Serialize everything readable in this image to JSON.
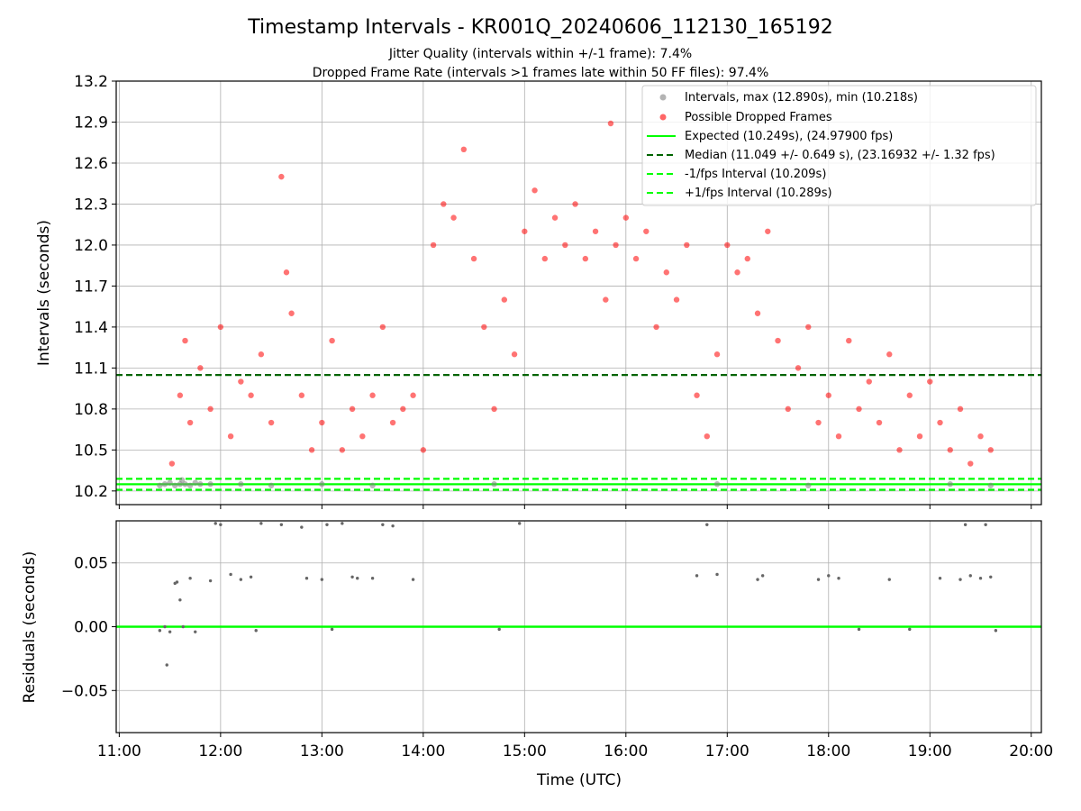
{
  "title": "Timestamp Intervals - KR001Q_20240606_112130_165192",
  "subtitle1": "Jitter Quality (intervals within +/-1 frame): 7.4%",
  "subtitle2": "Dropped Frame Rate (intervals >1 frames late within 50 FF files): 97.4%",
  "colors": {
    "intervals": "#808080",
    "dropped": "#ff0000",
    "expected": "#00ff00",
    "median": "#006400",
    "fps_band": "#00ff00"
  },
  "chart_data": [
    {
      "type": "scatter",
      "title": "",
      "xlabel": "",
      "ylabel": "Intervals (seconds)",
      "xlim": [
        10.97,
        20.1
      ],
      "ylim": [
        10.1,
        13.2
      ],
      "grid": true,
      "legend_placement": "top-right",
      "x_ticks": [
        11,
        12,
        13,
        14,
        15,
        16,
        17,
        18,
        19,
        20
      ],
      "y_ticks": [
        10.2,
        10.5,
        10.8,
        11.1,
        11.4,
        11.7,
        12.0,
        12.3,
        12.6,
        12.9,
        13.2
      ],
      "y_tick_labels": [
        "10.2",
        "10.5",
        "10.8",
        "11.1",
        "11.4",
        "11.7",
        "12.0",
        "12.3",
        "12.6",
        "12.9",
        "13.2"
      ],
      "series": [
        {
          "name": "Intervals, max (12.890s), min (10.218s)",
          "kind": "scatter",
          "x": [
            11.4,
            11.45,
            11.5,
            11.55,
            11.6,
            11.62,
            11.65,
            11.7,
            11.75,
            11.8,
            11.9,
            12.2,
            12.5,
            13.0,
            13.5,
            14.7,
            16.9,
            17.8,
            19.2,
            19.6
          ],
          "y": [
            10.24,
            10.25,
            10.26,
            10.24,
            10.25,
            10.28,
            10.25,
            10.24,
            10.26,
            10.25,
            10.25,
            10.25,
            10.24,
            10.25,
            10.24,
            10.25,
            10.25,
            10.24,
            10.25,
            10.24
          ]
        },
        {
          "name": "Possible Dropped Frames",
          "kind": "scatter",
          "x": [
            11.52,
            11.6,
            11.65,
            11.7,
            11.8,
            11.9,
            12.0,
            12.1,
            12.2,
            12.3,
            12.4,
            12.5,
            12.6,
            12.65,
            12.7,
            12.8,
            12.9,
            13.0,
            13.1,
            13.2,
            13.3,
            13.4,
            13.5,
            13.6,
            13.7,
            13.8,
            13.9,
            14.0,
            14.1,
            14.2,
            14.3,
            14.4,
            14.5,
            14.6,
            14.7,
            14.8,
            14.9,
            15.0,
            15.1,
            15.2,
            15.3,
            15.4,
            15.5,
            15.6,
            15.7,
            15.8,
            15.85,
            15.9,
            16.0,
            16.1,
            16.2,
            16.3,
            16.4,
            16.5,
            16.6,
            16.7,
            16.8,
            16.9,
            17.0,
            17.1,
            17.2,
            17.3,
            17.4,
            17.5,
            17.6,
            17.7,
            17.8,
            17.9,
            18.0,
            18.1,
            18.2,
            18.3,
            18.4,
            18.5,
            18.6,
            18.7,
            18.8,
            18.9,
            19.0,
            19.1,
            19.2,
            19.3,
            19.4,
            19.5,
            19.6
          ],
          "y": [
            10.4,
            10.9,
            11.3,
            10.7,
            11.1,
            10.8,
            11.4,
            10.6,
            11.0,
            10.9,
            11.2,
            10.7,
            12.5,
            11.8,
            11.5,
            10.9,
            10.5,
            10.7,
            11.3,
            10.5,
            10.8,
            10.6,
            10.9,
            11.4,
            10.7,
            10.8,
            10.9,
            10.5,
            12.0,
            12.3,
            12.2,
            12.7,
            11.9,
            11.4,
            10.8,
            11.6,
            11.2,
            12.1,
            12.4,
            11.9,
            12.2,
            12.0,
            12.3,
            11.9,
            12.1,
            11.6,
            12.89,
            12.0,
            12.2,
            11.9,
            12.1,
            11.4,
            11.8,
            11.6,
            12.0,
            10.9,
            10.6,
            11.2,
            12.0,
            11.8,
            11.9,
            11.5,
            12.1,
            11.3,
            10.8,
            11.1,
            11.4,
            10.7,
            10.9,
            10.6,
            11.3,
            10.8,
            11.0,
            10.7,
            11.2,
            10.5,
            10.9,
            10.6,
            11.0,
            10.7,
            10.5,
            10.8,
            10.4,
            10.6,
            10.5
          ]
        },
        {
          "name": "Expected (10.249s), (24.97900 fps)",
          "kind": "hline",
          "y": 10.249
        },
        {
          "name": "Median (11.049 +/- 0.649 s), (23.16932 +/- 1.32 fps)",
          "kind": "hline",
          "y": 11.049
        },
        {
          "name": "-1/fps Interval (10.209s)",
          "kind": "hline",
          "y": 10.209
        },
        {
          "name": "+1/fps Interval (10.289s)",
          "kind": "hline",
          "y": 10.289
        }
      ]
    },
    {
      "type": "scatter",
      "title": "",
      "xlabel": "Time (UTC)",
      "ylabel": "Residuals (seconds)",
      "xlim": [
        10.97,
        20.1
      ],
      "ylim": [
        -0.083,
        0.083
      ],
      "grid": true,
      "x_ticks": [
        11,
        12,
        13,
        14,
        15,
        16,
        17,
        18,
        19,
        20
      ],
      "x_tick_labels": [
        "11:00",
        "12:00",
        "13:00",
        "14:00",
        "15:00",
        "16:00",
        "17:00",
        "18:00",
        "19:00",
        "20:00"
      ],
      "y_ticks": [
        -0.05,
        0.0,
        0.05
      ],
      "y_tick_labels": [
        "−0.05",
        "0.00",
        "0.05"
      ],
      "zero_line": 0.0,
      "series": [
        {
          "name": "",
          "kind": "scatter",
          "x": [
            11.4,
            11.45,
            11.47,
            11.5,
            11.55,
            11.57,
            11.6,
            11.63,
            11.7,
            11.75,
            11.9,
            11.95,
            12.0,
            12.1,
            12.2,
            12.3,
            12.35,
            12.4,
            12.6,
            12.8,
            12.85,
            13.0,
            13.05,
            13.1,
            13.2,
            13.3,
            13.35,
            13.5,
            13.6,
            13.7,
            13.9,
            14.75,
            14.95,
            16.7,
            16.8,
            16.9,
            17.3,
            17.35,
            17.9,
            18.0,
            18.1,
            18.3,
            18.6,
            18.8,
            19.1,
            19.3,
            19.35,
            19.4,
            19.5,
            19.55,
            19.6,
            19.65
          ],
          "y": [
            -0.003,
            0.0,
            -0.03,
            -0.004,
            0.034,
            0.035,
            0.021,
            0.0,
            0.038,
            -0.004,
            0.036,
            0.081,
            0.08,
            0.041,
            0.037,
            0.039,
            -0.003,
            0.081,
            0.08,
            0.078,
            0.038,
            0.037,
            0.08,
            -0.002,
            0.081,
            0.039,
            0.038,
            0.038,
            0.08,
            0.079,
            0.037,
            -0.002,
            0.081,
            0.04,
            0.08,
            0.041,
            0.037,
            0.04,
            0.037,
            0.04,
            0.038,
            -0.002,
            0.037,
            -0.002,
            0.038,
            0.037,
            0.08,
            0.04,
            0.038,
            0.08,
            0.039,
            -0.003
          ]
        }
      ]
    }
  ]
}
